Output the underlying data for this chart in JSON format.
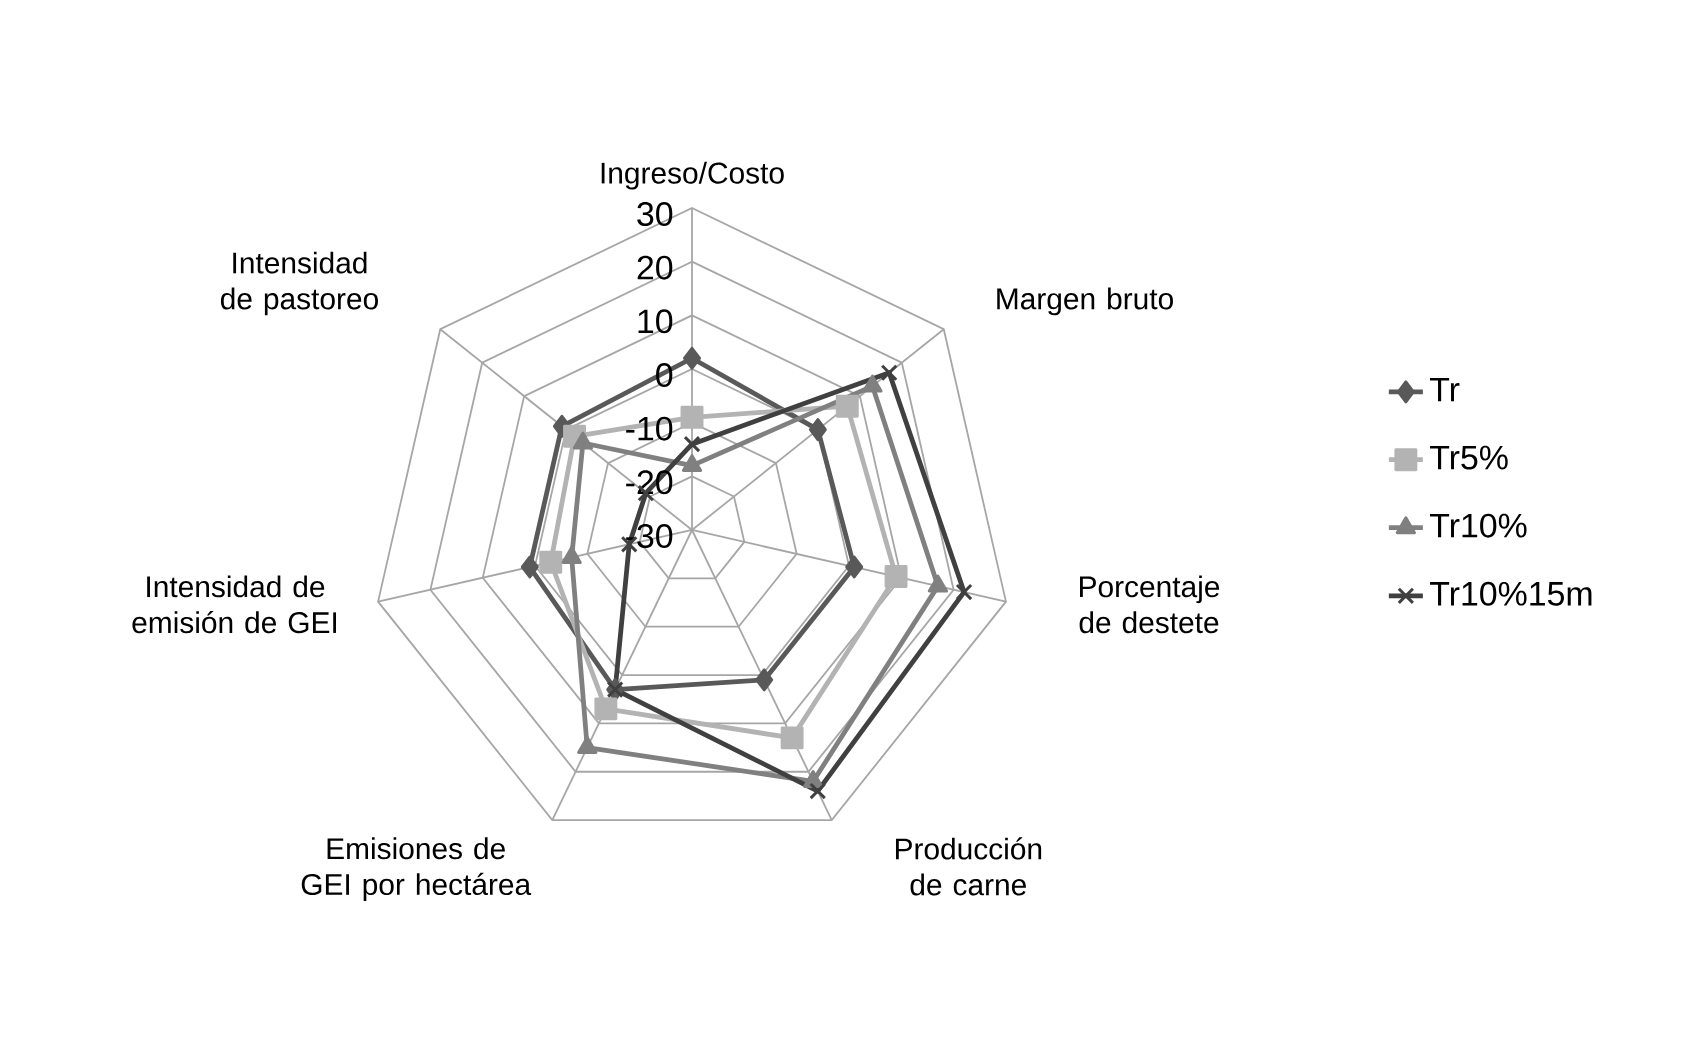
{
  "chart_data": {
    "type": "radar",
    "categories": [
      "Ingreso/Costo",
      "Margen bruto",
      "Porcentaje de destete",
      "Producción de carne",
      "Emisiones de GEI por hectárea",
      "Intensidad de emisión de GEI",
      "Intensidad de pastoreo"
    ],
    "ylim": [
      -30,
      30
    ],
    "yticks": [
      -30,
      -20,
      -10,
      0,
      10,
      20,
      30
    ],
    "grid": true,
    "legend": "right",
    "series": [
      {
        "name": "Tr",
        "color": "#595959",
        "marker": "diamond",
        "values": [
          2,
          0,
          1,
          1,
          3,
          1,
          1
        ]
      },
      {
        "name": "Tr5%",
        "color": "#b3b3b3",
        "marker": "square",
        "values": [
          -9,
          7,
          9,
          13,
          7,
          -3,
          -2
        ]
      },
      {
        "name": "Tr10%",
        "color": "#808080",
        "marker": "triangle",
        "values": [
          -18,
          13,
          17,
          22,
          15,
          -7,
          -4
        ]
      },
      {
        "name": "Tr10%15m",
        "color": "#404040",
        "marker": "cross",
        "values": [
          -14,
          17,
          22,
          24,
          3,
          -18,
          -19
        ]
      }
    ]
  }
}
